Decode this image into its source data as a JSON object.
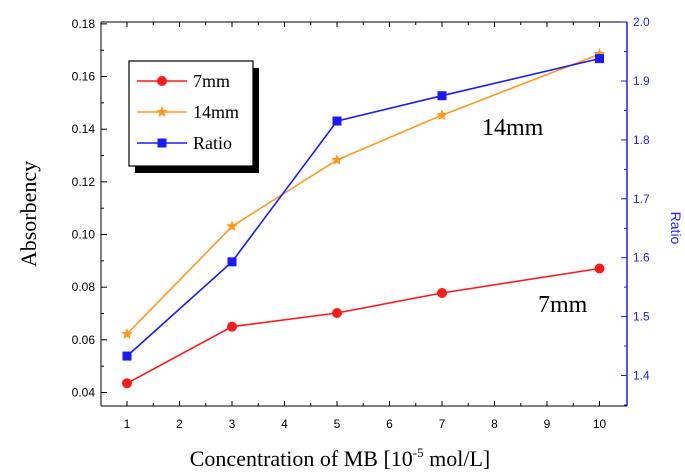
{
  "chart_data": {
    "type": "line",
    "xlabel_main": "Concentration of MB  [10",
    "xlabel_sup": "-5",
    "xlabel_tail": " mol/L]",
    "ylabel_left": "Absorbency",
    "ylabel_right": "Ratio",
    "x_categories": [
      "1",
      "2",
      "3",
      "4",
      "5",
      "6",
      "7",
      "8",
      "9",
      "10"
    ],
    "y_left_ticks": [
      "0.04",
      "0.06",
      "0.08",
      "0.10",
      "0.12",
      "0.14",
      "0.16",
      "0.18"
    ],
    "y_right_ticks": [
      "1.4",
      "1.5",
      "1.6",
      "1.7",
      "1.8",
      "1.9",
      "2.0"
    ],
    "ylim_left": [
      0.036,
      0.18
    ],
    "ylim_right": [
      1.34,
      2.0
    ],
    "annotations": [
      {
        "text": "14mm",
        "near_series": "14mm"
      },
      {
        "text": "7mm",
        "near_series": "7mm"
      }
    ],
    "legend": {
      "placement": "top-left"
    },
    "series": [
      {
        "name": "7mm",
        "axis": "left",
        "marker": "circle",
        "color": "#ff1a1a",
        "x": [
          1,
          3,
          5,
          7,
          10
        ],
        "y": [
          0.0435,
          0.065,
          0.0702,
          0.0778,
          0.0871
        ]
      },
      {
        "name": "14mm",
        "axis": "left",
        "marker": "star",
        "color": "#ff9a1e",
        "x": [
          1,
          3,
          5,
          7,
          10
        ],
        "y": [
          0.0622,
          0.1031,
          0.1283,
          0.1453,
          0.1685
        ]
      },
      {
        "name": "Ratio",
        "axis": "right",
        "marker": "square",
        "color": "#1a1aff",
        "x": [
          1,
          3,
          5,
          7,
          10
        ],
        "y": [
          1.433,
          1.593,
          1.832,
          1.875,
          1.938
        ]
      }
    ]
  }
}
